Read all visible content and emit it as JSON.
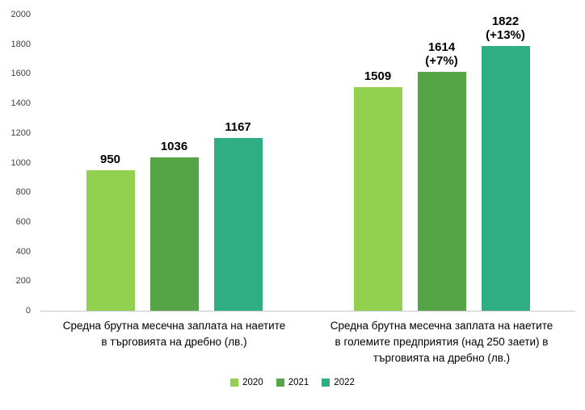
{
  "chart_data": {
    "type": "bar",
    "categories": [
      "Средна брутна месечна заплата на наетите в търговията на дребно (лв.)",
      "Средна брутна месечна заплата на наетите в големите предприятия (над 250 заети) в търговията на дребно (лв.)"
    ],
    "category_label_lines": [
      [
        "Средна брутна месечна заплата на наетите",
        "в търговията на дребно (лв.)"
      ],
      [
        "Средна брутна месечна заплата на наетите",
        "в големите предприятия (над 250 заети) в",
        "търговията на дребно (лв.)"
      ]
    ],
    "series": [
      {
        "name": "2020",
        "color": "#92d050",
        "values": [
          950,
          1509
        ]
      },
      {
        "name": "2021",
        "color": "#55a546",
        "values": [
          1036,
          1614
        ]
      },
      {
        "name": "2022",
        "color": "#2eae82",
        "values": [
          1167,
          1822
        ]
      }
    ],
    "value_label_lines": [
      [
        [
          "950"
        ],
        [
          "1036"
        ],
        [
          "1167"
        ]
      ],
      [
        [
          "1509"
        ],
        [
          "1614",
          "(+7%)"
        ],
        [
          "1822",
          "(+13%)"
        ]
      ]
    ],
    "value_label_bold": [
      false,
      true
    ],
    "ylim": [
      0,
      2000
    ],
    "yticks": [
      0,
      200,
      400,
      600,
      800,
      1000,
      1200,
      1400,
      1600,
      1800,
      2000
    ],
    "legend_entries": [
      "2020",
      "2021",
      "2022"
    ],
    "legend_position": "bottom",
    "grid": false,
    "title": "",
    "xlabel": "",
    "ylabel": ""
  }
}
